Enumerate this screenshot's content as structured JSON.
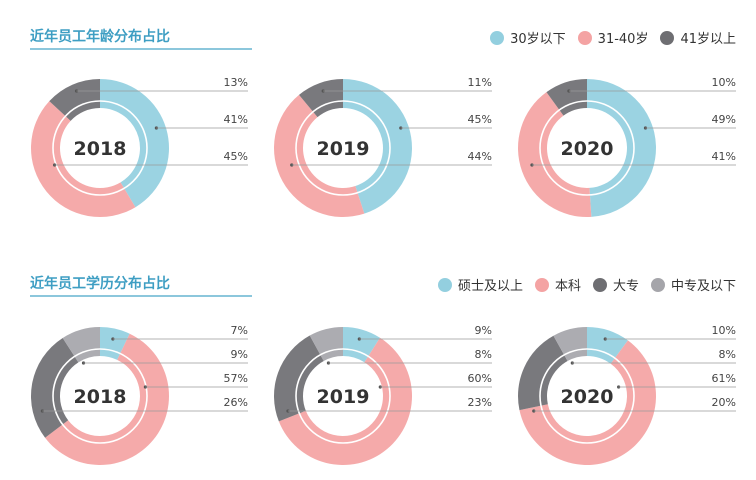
{
  "chart_data": [
    {
      "type": "pie",
      "section": "age",
      "title": "近年员工年龄分布占比",
      "year": "2018",
      "categories": [
        "30岁以下",
        "31-40岁",
        "41岁以上"
      ],
      "values": [
        41,
        45,
        13
      ],
      "labels": [
        "13%",
        "41%",
        "45%"
      ]
    },
    {
      "type": "pie",
      "section": "age",
      "title": "近年员工年龄分布占比",
      "year": "2019",
      "categories": [
        "30岁以下",
        "31-40岁",
        "41岁以上"
      ],
      "values": [
        45,
        44,
        11
      ],
      "labels": [
        "11%",
        "45%",
        "44%"
      ]
    },
    {
      "type": "pie",
      "section": "age",
      "title": "近年员工年龄分布占比",
      "year": "2020",
      "categories": [
        "30岁以下",
        "31-40岁",
        "41岁以上"
      ],
      "values": [
        49,
        41,
        10
      ],
      "labels": [
        "10%",
        "49%",
        "41%"
      ]
    },
    {
      "type": "pie",
      "section": "edu",
      "title": "近年员工学历分布占比",
      "year": "2018",
      "categories": [
        "硕士及以上",
        "本科",
        "大专",
        "中专及以下"
      ],
      "values": [
        7,
        57,
        26,
        9
      ],
      "labels": [
        "7%",
        "9%",
        "57%",
        "26%"
      ]
    },
    {
      "type": "pie",
      "section": "edu",
      "title": "近年员工学历分布占比",
      "year": "2019",
      "categories": [
        "硕士及以上",
        "本科",
        "大专",
        "中专及以下"
      ],
      "values": [
        9,
        60,
        23,
        8
      ],
      "labels": [
        "9%",
        "8%",
        "60%",
        "23%"
      ]
    },
    {
      "type": "pie",
      "section": "edu",
      "title": "近年员工学历分布占比",
      "year": "2020",
      "categories": [
        "硕士及以上",
        "本科",
        "大专",
        "中专及以下"
      ],
      "values": [
        10,
        61,
        20,
        8
      ],
      "labels": [
        "10%",
        "8%",
        "61%",
        "20%"
      ]
    }
  ],
  "sections": {
    "age": {
      "title": "近年员工年龄分布占比",
      "legend": [
        {
          "label": "30岁以下",
          "color": "#93cfdf"
        },
        {
          "label": "31-40岁",
          "color": "#f4a3a3"
        },
        {
          "label": "41岁以上",
          "color": "#6e6e72"
        }
      ]
    },
    "edu": {
      "title": "近年员工学历分布占比",
      "legend": [
        {
          "label": "硕士及以上",
          "color": "#93cfdf"
        },
        {
          "label": "本科",
          "color": "#f4a3a3"
        },
        {
          "label": "大专",
          "color": "#6e6e72"
        },
        {
          "label": "中专及以下",
          "color": "#a5a5aa"
        }
      ]
    }
  }
}
